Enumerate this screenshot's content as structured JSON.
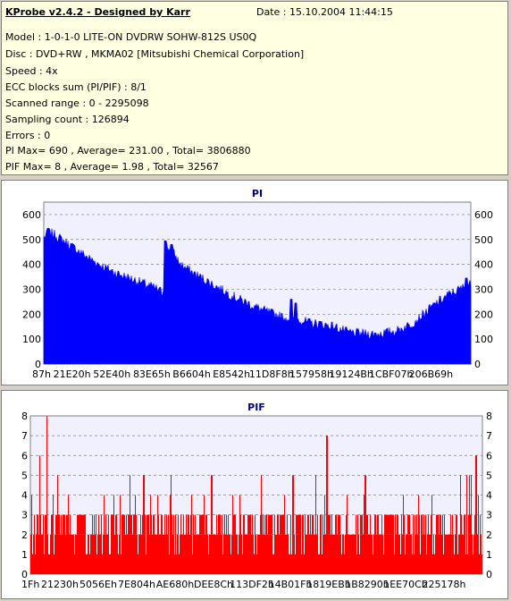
{
  "info": {
    "title": "KProbe v2.4.2 - Designed by Karr",
    "date": "Date : 15.10.2004 11:44:15",
    "lines": [
      "Model : 1-0-1-0 LITE-ON DVDRW SOHW-812S  US0Q",
      "Disc : DVD+RW , MKMA02 [Mitsubishi Chemical Corporation]",
      "Speed : 4x",
      "ECC blocks sum (PI/PIF) : 8/1",
      "Scanned range : 0 - 2295098",
      "Sampling count : 126894",
      "Errors : 0",
      "PI Max= 690 , Average= 231.00 , Total= 3806880",
      "PIF Max= 8 , Average= 1.98 , Total= 32567"
    ]
  },
  "chart_data": [
    {
      "type": "area",
      "title": "PI",
      "color": "#0000ff",
      "ylim": [
        0,
        650
      ],
      "yticks": [
        0,
        100,
        200,
        300,
        400,
        500,
        600
      ],
      "xlim": [
        0,
        2295098
      ],
      "xticks": [
        "87h",
        "21E20h",
        "52E40h",
        "83E65h",
        "B6604h",
        "E8542h",
        "11D8F8h",
        "157958h",
        "19124Bh",
        "1CBF07h",
        "206B69h"
      ],
      "grid": true,
      "profile": [
        [
          0.0,
          510
        ],
        [
          0.02,
          525
        ],
        [
          0.05,
          490
        ],
        [
          0.08,
          455
        ],
        [
          0.11,
          420
        ],
        [
          0.14,
          390
        ],
        [
          0.17,
          365
        ],
        [
          0.2,
          345
        ],
        [
          0.23,
          325
        ],
        [
          0.26,
          305
        ],
        [
          0.28,
          285
        ],
        [
          0.283,
          470
        ],
        [
          0.3,
          455
        ],
        [
          0.32,
          400
        ],
        [
          0.35,
          365
        ],
        [
          0.38,
          335
        ],
        [
          0.41,
          305
        ],
        [
          0.44,
          275
        ],
        [
          0.47,
          250
        ],
        [
          0.5,
          225
        ],
        [
          0.53,
          205
        ],
        [
          0.56,
          188
        ],
        [
          0.585,
          180
        ],
        [
          0.6,
          178
        ],
        [
          0.62,
          165
        ],
        [
          0.65,
          160
        ],
        [
          0.68,
          150
        ],
        [
          0.71,
          128
        ],
        [
          0.74,
          122
        ],
        [
          0.77,
          120
        ],
        [
          0.8,
          125
        ],
        [
          0.83,
          135
        ],
        [
          0.86,
          160
        ],
        [
          0.89,
          200
        ],
        [
          0.92,
          245
        ],
        [
          0.95,
          280
        ],
        [
          0.98,
          305
        ],
        [
          1.0,
          320
        ]
      ],
      "spikes": [
        [
          0.01,
          545
        ],
        [
          0.285,
          495
        ],
        [
          0.3,
          480
        ],
        [
          0.58,
          260
        ],
        [
          0.59,
          245
        ],
        [
          0.99,
          345
        ]
      ]
    },
    {
      "type": "bar",
      "title": "PIF",
      "color": "#ff0000",
      "ylim": [
        0,
        8
      ],
      "yticks": [
        0,
        1,
        2,
        3,
        4,
        5,
        6,
        7,
        8
      ],
      "xlim": [
        0,
        2295098
      ],
      "xticks": [
        "1Fh",
        "21230h",
        "5056Eh",
        "7E804h",
        "AE680h",
        "DEE8Ch",
        "113DF2h",
        "14B01Fh",
        "1819EBh",
        "1B8290h",
        "1EE70Ch",
        "225178h"
      ],
      "grid": true,
      "peaks": [
        [
          0.035,
          8
        ],
        [
          0.02,
          6
        ],
        [
          0.655,
          7
        ],
        [
          0.4,
          5
        ],
        [
          0.965,
          5
        ],
        [
          0.985,
          6
        ],
        [
          0.97,
          5
        ],
        [
          0.975,
          5
        ],
        [
          0.95,
          5
        ],
        [
          0.06,
          5
        ],
        [
          0.22,
          5
        ],
        [
          0.25,
          5
        ],
        [
          0.31,
          5
        ],
        [
          0.51,
          5
        ],
        [
          0.63,
          5
        ],
        [
          0.58,
          5
        ],
        [
          0.74,
          5
        ]
      ]
    }
  ]
}
